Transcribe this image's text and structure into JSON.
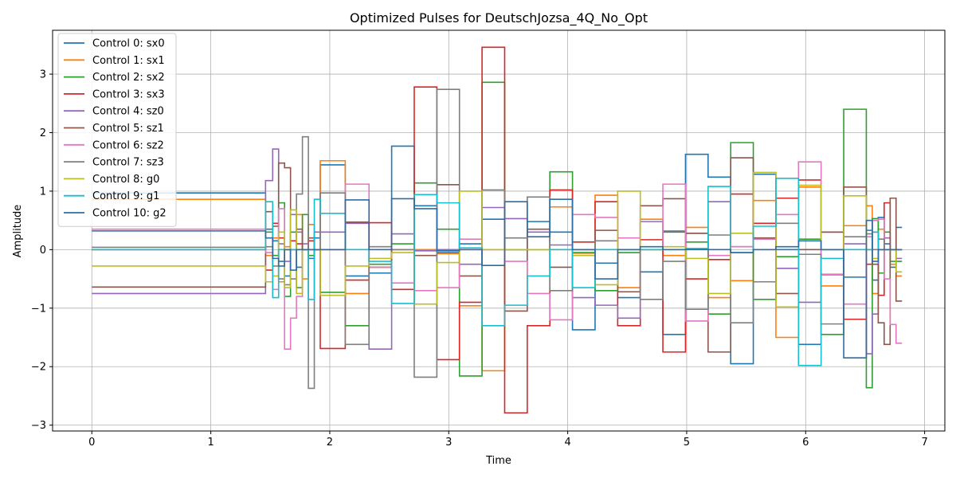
{
  "chart_data": {
    "type": "line",
    "step": "post",
    "title": "Optimized Pulses for DeutschJozsa_4Q_No_Opt",
    "xlabel": "Time",
    "ylabel": "Amplitude",
    "xlim": [
      -0.33,
      7.17
    ],
    "ylim": [
      -3.1,
      3.75
    ],
    "xticks": [
      0,
      1,
      2,
      3,
      4,
      5,
      6,
      7
    ],
    "yticks": [
      -3,
      -2,
      -1,
      0,
      1,
      2,
      3
    ],
    "tick_labels": {
      "x": [
        "0",
        "1",
        "2",
        "3",
        "4",
        "5",
        "6",
        "7"
      ],
      "y": [
        "−3",
        "−2",
        "−1",
        "0",
        "1",
        "2",
        "3"
      ]
    },
    "grid": true,
    "legend_position": "upper-left",
    "x": [
      0,
      1.46,
      1.52,
      1.57,
      1.62,
      1.67,
      1.72,
      1.77,
      1.82,
      1.87,
      1.92,
      2.13,
      2.33,
      2.52,
      2.71,
      2.9,
      3.09,
      3.28,
      3.47,
      3.66,
      3.85,
      4.04,
      4.23,
      4.42,
      4.61,
      4.8,
      4.99,
      5.18,
      5.37,
      5.56,
      5.75,
      5.94,
      6.13,
      6.32,
      6.51,
      6.56,
      6.61,
      6.66,
      6.71,
      6.76,
      6.81
    ],
    "series": [
      {
        "name": "Control 0: sx0",
        "color": "#1f77b4",
        "values": [
          0.97,
          0.35,
          0.15,
          -0.2,
          -0.45,
          0.0,
          -0.3,
          0.0,
          -0.15,
          0.2,
          1.45,
          -0.45,
          -0.4,
          1.77,
          0.75,
          -0.05,
          0.1,
          0.52,
          0.0,
          0.48,
          0.3,
          -1.37,
          -0.23,
          -0.82,
          -0.38,
          -1.45,
          1.63,
          1.24,
          -1.95,
          1.29,
          0.0,
          -1.62,
          0.0,
          -0.47,
          0.33,
          -0.52,
          0.55,
          0.1,
          -0.3,
          0.38,
          0.38
        ]
      },
      {
        "name": "Control 1: sx1",
        "color": "#ff7f0e",
        "values": [
          0.86,
          -0.1,
          0.2,
          -0.55,
          0.05,
          0.3,
          0.6,
          -0.5,
          0.43,
          0.0,
          1.52,
          -0.75,
          -0.3,
          0.0,
          0.0,
          -0.07,
          -0.96,
          -2.07,
          0.0,
          0.0,
          0.73,
          -0.06,
          0.93,
          -0.65,
          0.52,
          -0.1,
          0.38,
          -0.82,
          -0.53,
          0.84,
          -1.5,
          1.07,
          -0.62,
          0.41,
          0.75,
          -0.75,
          0.35,
          0.0,
          -0.25,
          -0.45,
          -0.45
        ]
      },
      {
        "name": "Control 2: sx2",
        "color": "#2ca02c",
        "values": [
          0.0,
          0.3,
          -0.1,
          0.8,
          -0.8,
          0.3,
          -0.65,
          0.6,
          -0.1,
          0.0,
          -0.73,
          -1.3,
          -0.25,
          0.1,
          1.14,
          0.35,
          -2.16,
          2.86,
          0.0,
          0.0,
          1.33,
          -0.05,
          -0.7,
          -0.05,
          0.0,
          0.3,
          0.13,
          -1.1,
          1.83,
          -0.85,
          -0.12,
          0.18,
          -1.45,
          2.4,
          -2.36,
          0.53,
          -0.4,
          0.3,
          -0.2,
          -0.2,
          -0.2
        ]
      },
      {
        "name": "Control 3: sx3",
        "color": "#d62728",
        "values": [
          0.0,
          -0.35,
          0.45,
          0.2,
          0.0,
          0.15,
          0.1,
          0.0,
          0.15,
          0.0,
          -1.69,
          -0.52,
          0.46,
          -0.68,
          2.78,
          -1.88,
          -0.9,
          3.46,
          -2.79,
          -1.3,
          1.02,
          0.13,
          0.82,
          -1.3,
          0.17,
          -1.75,
          -0.5,
          -0.17,
          0.95,
          0.45,
          0.88,
          1.19,
          0.3,
          -1.19,
          -0.25,
          0.3,
          -0.78,
          0.8,
          0.0,
          0.0,
          0.0
        ]
      },
      {
        "name": "Control 4: sz0",
        "color": "#9467bd",
        "values": [
          -0.75,
          1.18,
          1.72,
          0.1,
          -0.2,
          0.6,
          0.3,
          0.1,
          0.0,
          0.3,
          0.3,
          0.45,
          -1.7,
          0.27,
          -0.02,
          0.0,
          -0.25,
          0.72,
          0.53,
          0.3,
          0.08,
          -0.82,
          -0.95,
          -1.17,
          0.48,
          0.32,
          0.28,
          0.82,
          0.05,
          0.0,
          -0.32,
          -0.9,
          -0.43,
          0.1,
          -1.78,
          -1.1,
          0.0,
          0.2,
          0.0,
          -0.15,
          -0.15
        ]
      },
      {
        "name": "Control 5: sz1",
        "color": "#8c564b",
        "values": [
          -0.64,
          0.65,
          0.4,
          1.48,
          1.4,
          0.0,
          0.35,
          0.0,
          0.2,
          0.0,
          0.0,
          0.47,
          -0.3,
          0.0,
          -0.1,
          1.11,
          -0.45,
          0.0,
          -1.05,
          0.35,
          -0.3,
          0.0,
          0.33,
          -0.72,
          0.75,
          0.87,
          0.28,
          -1.75,
          1.57,
          0.2,
          -0.75,
          0.0,
          0.3,
          1.07,
          0.0,
          -0.25,
          -1.25,
          -1.62,
          0.88,
          -0.88,
          -0.88
        ]
      },
      {
        "name": "Control 6: sz2",
        "color": "#e377c2",
        "values": [
          0.35,
          -0.05,
          -0.68,
          0.7,
          -1.7,
          -1.17,
          -0.8,
          0.0,
          0.0,
          0.0,
          0.0,
          1.12,
          -0.3,
          -0.57,
          -0.7,
          -0.65,
          0.18,
          0.0,
          -0.2,
          -0.75,
          -1.2,
          0.6,
          0.55,
          0.2,
          0.0,
          1.12,
          -1.22,
          -0.1,
          0.05,
          0.18,
          0.6,
          1.5,
          -0.42,
          -0.93,
          0.22,
          0.5,
          0.52,
          -0.5,
          -1.28,
          -1.6,
          -1.6
        ]
      },
      {
        "name": "Control 7: sz3",
        "color": "#7f7f7f",
        "values": [
          0.04,
          0.05,
          -0.28,
          -0.5,
          -0.6,
          -0.5,
          0.95,
          1.93,
          -2.37,
          0.0,
          0.97,
          -1.62,
          0.05,
          0.0,
          -2.18,
          2.74,
          0.0,
          1.02,
          0.2,
          0.9,
          -0.7,
          0.0,
          0.15,
          0.0,
          -0.85,
          -0.2,
          -1.02,
          0.25,
          -1.25,
          -0.55,
          0.45,
          -0.08,
          -1.27,
          0.22,
          0.27,
          0.0,
          0.18,
          0.0,
          0.0,
          0.0,
          0.0
        ]
      },
      {
        "name": "Control 8: g0",
        "color": "#bcbd22",
        "values": [
          -0.28,
          -0.55,
          -0.45,
          0.3,
          -0.65,
          0.68,
          -0.75,
          0.0,
          0.0,
          0.0,
          -0.78,
          -0.28,
          -0.15,
          -0.05,
          -0.93,
          -0.22,
          1.0,
          0.0,
          0.0,
          0.0,
          0.0,
          -0.1,
          -0.6,
          1.0,
          0.0,
          0.05,
          -0.15,
          -0.75,
          0.28,
          1.32,
          -0.98,
          1.1,
          0.0,
          0.92,
          0.0,
          -0.15,
          0.0,
          0.0,
          0.0,
          -0.38,
          -0.38
        ]
      },
      {
        "name": "Control 9: g1",
        "color": "#17becf",
        "values": [
          0.0,
          0.82,
          -0.82,
          0.0,
          0.0,
          0.0,
          0.0,
          0.0,
          -0.85,
          0.86,
          0.62,
          0.0,
          -0.2,
          -0.92,
          0.94,
          0.8,
          0.03,
          -1.3,
          -0.95,
          -0.45,
          0.0,
          -0.65,
          0.0,
          0.0,
          0.0,
          0.0,
          0.02,
          1.08,
          -0.05,
          0.4,
          1.22,
          -1.98,
          -0.15,
          0.0,
          0.0,
          0.3,
          0.0,
          0.0,
          0.0,
          0.0,
          0.0
        ]
      },
      {
        "name": "Control 10: g2",
        "color": "#2e6da4",
        "values": [
          0.32,
          0.2,
          -0.15,
          -0.28,
          0.0,
          -0.35,
          0.0,
          0.0,
          0.0,
          0.0,
          0.0,
          0.85,
          0.0,
          0.87,
          0.7,
          -0.02,
          0.0,
          -0.27,
          0.82,
          0.22,
          0.86,
          0.0,
          -0.5,
          0.0,
          0.05,
          0.0,
          0.0,
          0.0,
          -0.05,
          0.0,
          0.05,
          0.15,
          0.0,
          -1.85,
          0.5,
          -0.2,
          0.0,
          0.0,
          0.0,
          0.0,
          0.0
        ]
      }
    ]
  }
}
